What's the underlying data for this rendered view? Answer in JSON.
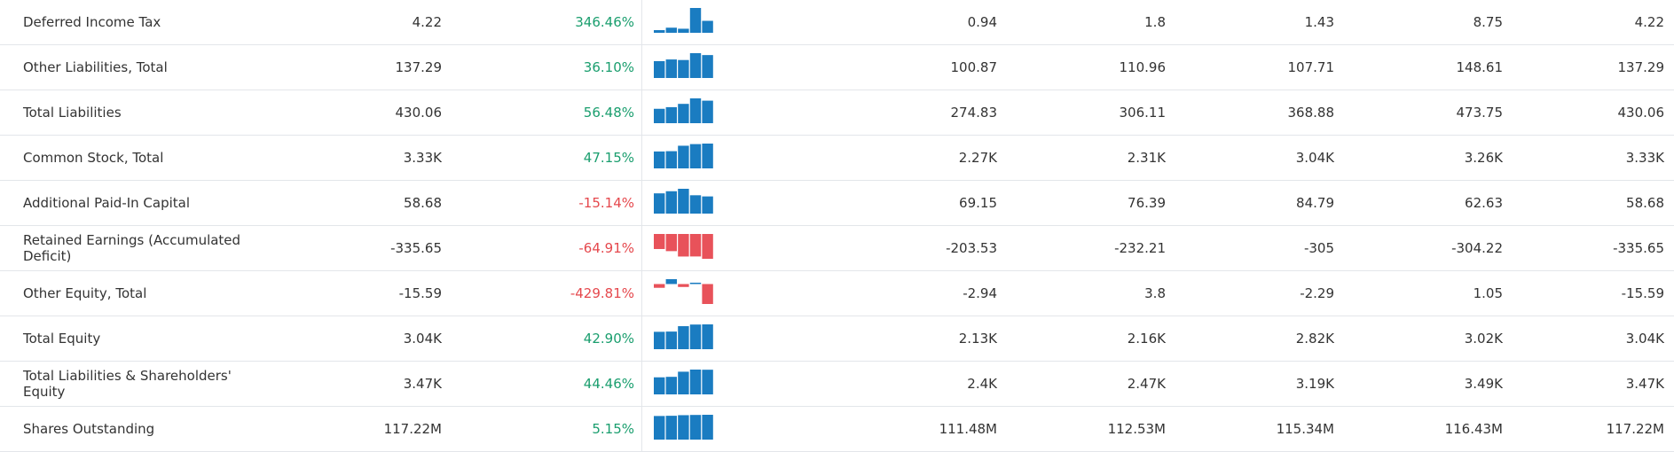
{
  "table": {
    "rows": [
      {
        "label": "Deferred Income Tax",
        "latest": "4.22",
        "change": "346.46%",
        "periods": [
          0.94,
          1.8,
          1.43,
          8.75,
          4.22
        ]
      },
      {
        "label": "Other Liabilities, Total",
        "latest": "137.29",
        "change": "36.10%",
        "periods": [
          100.87,
          110.96,
          107.71,
          148.61,
          137.29
        ]
      },
      {
        "label": "Total Liabilities",
        "latest": "430.06",
        "change": "56.48%",
        "periods": [
          274.83,
          306.11,
          368.88,
          473.75,
          430.06
        ]
      },
      {
        "label": "Common Stock, Total",
        "latest": "3.33K",
        "change": "47.15%",
        "periods": [
          {
            "value": 2270,
            "label": "2.27K"
          },
          {
            "value": 2310,
            "label": "2.31K"
          },
          {
            "value": 3040,
            "label": "3.04K"
          },
          {
            "value": 3260,
            "label": "3.26K"
          },
          {
            "value": 3330,
            "label": "3.33K"
          }
        ]
      },
      {
        "label": "Additional Paid-In Capital",
        "latest": "58.68",
        "change": "-15.14%",
        "periods": [
          69.15,
          76.39,
          84.79,
          62.63,
          58.68
        ]
      },
      {
        "label": "Retained Earnings (Accumulated Deficit)",
        "latest": "-335.65",
        "change": "-64.91%",
        "periods": [
          -203.53,
          -232.21,
          -305,
          -304.22,
          -335.65
        ]
      },
      {
        "label": "Other Equity, Total",
        "latest": "-15.59",
        "change": "-429.81%",
        "periods": [
          -2.94,
          3.8,
          -2.29,
          1.05,
          -15.59
        ]
      },
      {
        "label": "Total Equity",
        "latest": "3.04K",
        "change": "42.90%",
        "periods": [
          {
            "value": 2130,
            "label": "2.13K"
          },
          {
            "value": 2160,
            "label": "2.16K"
          },
          {
            "value": 2820,
            "label": "2.82K"
          },
          {
            "value": 3020,
            "label": "3.02K"
          },
          {
            "value": 3040,
            "label": "3.04K"
          }
        ]
      },
      {
        "label": "Total Liabilities & Shareholders' Equity",
        "latest": "3.47K",
        "change": "44.46%",
        "periods": [
          {
            "value": 2400,
            "label": "2.4K"
          },
          {
            "value": 2470,
            "label": "2.47K"
          },
          {
            "value": 3190,
            "label": "3.19K"
          },
          {
            "value": 3490,
            "label": "3.49K"
          },
          {
            "value": 3470,
            "label": "3.47K"
          }
        ]
      },
      {
        "label": "Shares Outstanding",
        "latest": "117.22M",
        "change": "5.15%",
        "periods": [
          {
            "value": 111480000,
            "label": "111.48M"
          },
          {
            "value": 112530000,
            "label": "112.53M"
          },
          {
            "value": 115340000,
            "label": "115.34M"
          },
          {
            "value": 116430000,
            "label": "116.43M"
          },
          {
            "value": 117220000,
            "label": "117.22M"
          }
        ]
      }
    ]
  }
}
